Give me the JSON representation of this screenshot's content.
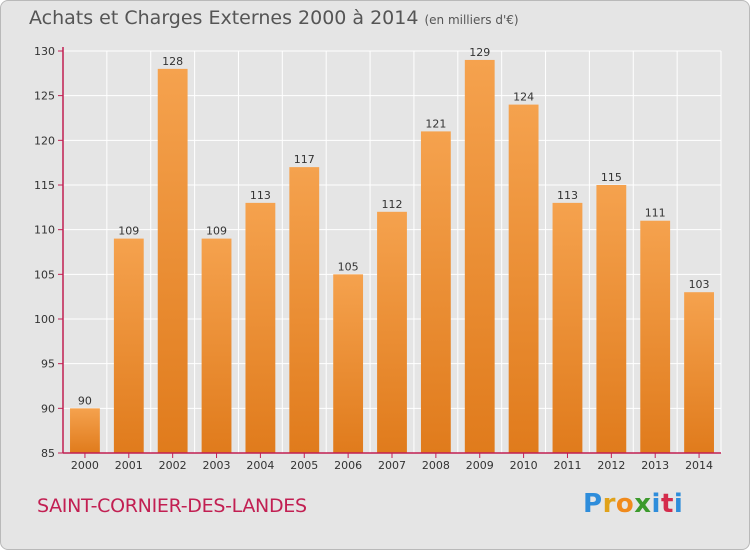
{
  "header": {
    "title": "Achats et Charges Externes 2000 à 2014",
    "unit": "(en milliers d'€)"
  },
  "footer": {
    "commune": "SAINT-CORNIER-DES-LANDES",
    "logo_letters": [
      "P",
      "r",
      "o",
      "x",
      "i",
      "t",
      "i"
    ],
    "logo_colors": [
      "#2e8ddb",
      "#e0a21a",
      "#f08a1c",
      "#3c9a2c",
      "#2e8ddb",
      "#d42c4c",
      "#2e8ddb"
    ]
  },
  "colors": {
    "bar_top": "#f5a24e",
    "bar_bottom": "#e07b1c",
    "axis": "#c21f52",
    "grid": "#ffffff"
  },
  "chart_data": {
    "type": "bar",
    "title": "Achats et Charges Externes 2000 à 2014",
    "subtitle": "(en milliers d'€)",
    "categories": [
      "2000",
      "2001",
      "2002",
      "2003",
      "2004",
      "2005",
      "2006",
      "2007",
      "2008",
      "2009",
      "2010",
      "2011",
      "2012",
      "2013",
      "2014"
    ],
    "values": [
      90,
      109,
      128,
      109,
      113,
      117,
      105,
      112,
      121,
      129,
      124,
      113,
      115,
      111,
      103
    ],
    "ylim": [
      85,
      130
    ],
    "yticks": [
      85,
      90,
      95,
      100,
      105,
      110,
      115,
      120,
      125,
      130
    ],
    "grid": true,
    "xlabel": "",
    "ylabel": ""
  }
}
